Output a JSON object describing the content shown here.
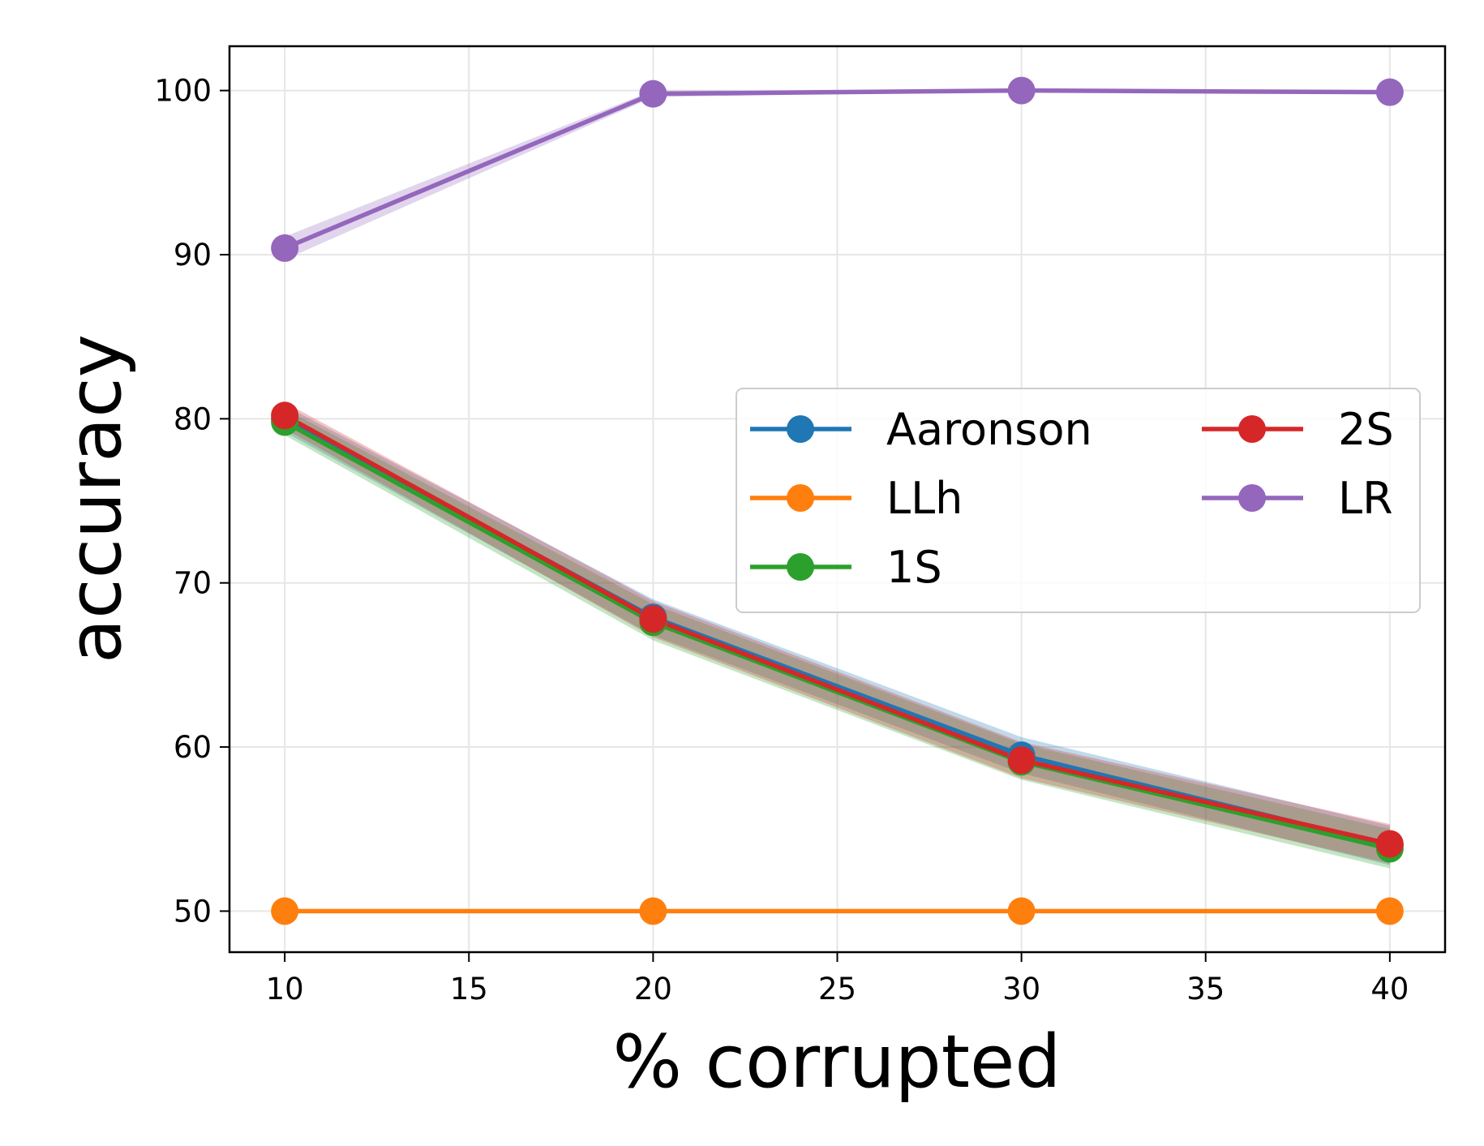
{
  "chart_data": {
    "type": "line",
    "title": "",
    "xlabel": "% corrupted",
    "ylabel": "accuracy",
    "x": [
      10,
      20,
      30,
      40
    ],
    "xlim": [
      8.5,
      41.5
    ],
    "ylim": [
      47.5,
      102.7
    ],
    "xticks": [
      "10",
      "15",
      "20",
      "25",
      "30",
      "35",
      "40"
    ],
    "yticks": [
      "50",
      "60",
      "70",
      "80",
      "90",
      "100"
    ],
    "grid": true,
    "legend_position": "center-right, two columns",
    "series": [
      {
        "name": "Aaronson",
        "color": "#1f77b4",
        "values": [
          80.0,
          67.9,
          59.5,
          54.0
        ],
        "band": [
          0.8,
          1.1,
          1.1,
          1.2
        ]
      },
      {
        "name": "LLh",
        "color": "#ff7f0e",
        "values": [
          50.0,
          50.0,
          50.0,
          50.0
        ],
        "band": [
          0.0,
          0.0,
          0.0,
          0.0
        ]
      },
      {
        "name": "1S",
        "color": "#2ca02c",
        "values": [
          79.8,
          67.6,
          59.1,
          53.8
        ],
        "band": [
          0.8,
          1.1,
          1.1,
          1.2
        ]
      },
      {
        "name": "2S",
        "color": "#d62728",
        "values": [
          80.2,
          67.8,
          59.2,
          54.1
        ],
        "band": [
          0.8,
          1.1,
          1.1,
          1.2
        ]
      },
      {
        "name": "LR",
        "color": "#9467bd",
        "values": [
          90.4,
          99.8,
          100.0,
          99.9
        ],
        "band": [
          0.7,
          0.2,
          0.0,
          0.0
        ]
      }
    ]
  }
}
